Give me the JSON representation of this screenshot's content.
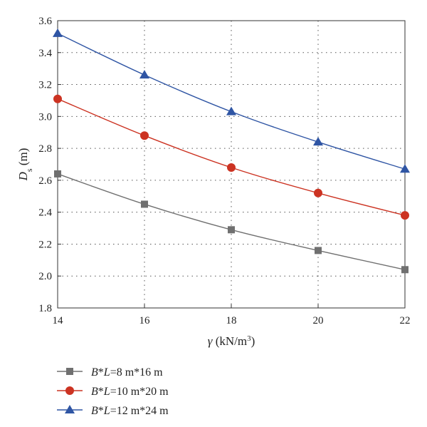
{
  "chart_data": {
    "type": "line",
    "xlabel": "γ (kN/m³)",
    "ylabel": "Ds (m)",
    "xlabel_parts": {
      "symbol": "γ",
      "unit_prefix": " (kN/m",
      "unit_exp": "3",
      "unit_suffix": ")"
    },
    "ylabel_parts": {
      "symbol": "D",
      "subscript": "s",
      "unit": " (m)"
    },
    "xlim": [
      14,
      22
    ],
    "ylim": [
      1.8,
      3.6
    ],
    "xticks": [
      "14",
      "16",
      "18",
      "20",
      "22"
    ],
    "yticks": [
      "1.8",
      "2.0",
      "2.2",
      "2.4",
      "2.6",
      "2.8",
      "3.0",
      "3.2",
      "3.4",
      "3.6"
    ],
    "grid": true,
    "legend_position": "bottom-left, below plot",
    "x": [
      14,
      16,
      18,
      20,
      22
    ],
    "series": [
      {
        "name": "B*L=8 m*16 m",
        "name_parts": [
          "B",
          "*",
          "L",
          "=8 m*16 m"
        ],
        "marker": "square",
        "color": "#707070",
        "values": [
          2.64,
          2.45,
          2.29,
          2.16,
          2.04
        ]
      },
      {
        "name": "B*L=10 m*20 m",
        "name_parts": [
          "B",
          "*",
          "L",
          "=10 m*20 m"
        ],
        "marker": "circle",
        "color": "#cc3322",
        "values": [
          3.11,
          2.88,
          2.68,
          2.52,
          2.38
        ]
      },
      {
        "name": "B*L=12 m*24 m",
        "name_parts": [
          "B",
          "*",
          "L",
          "=12 m*24 m"
        ],
        "marker": "triangle",
        "color": "#2f55a4",
        "values": [
          3.52,
          3.26,
          3.03,
          2.84,
          2.67
        ]
      }
    ]
  }
}
